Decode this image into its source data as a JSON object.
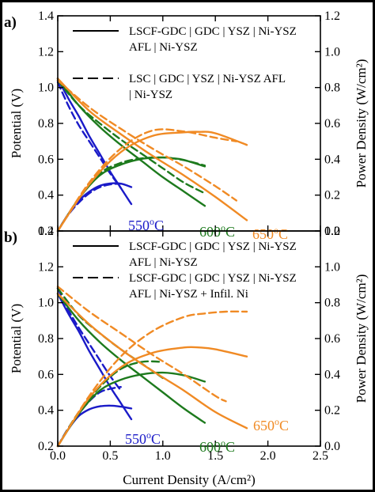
{
  "chart_data": [
    {
      "panel_label": "a)",
      "type": "line",
      "xlim": [
        0,
        2.5
      ],
      "ylim": [
        0.2,
        1.4
      ],
      "y2lim": [
        0,
        1.2
      ],
      "ylabel": "Potential (V)",
      "y2label": "Power Density (W/cm²)",
      "xticks": [
        "0.0",
        "0.5",
        "1.0",
        "1.5",
        "2.0",
        "2.5"
      ],
      "yticks": [
        "0.2",
        "0.4",
        "0.6",
        "0.8",
        "1.0",
        "1.2",
        "1.4"
      ],
      "y2ticks": [
        "0.0",
        "0.2",
        "0.4",
        "0.6",
        "0.8",
        "1.0",
        "1.2"
      ],
      "grid": false,
      "legend_position": "top",
      "legend": [
        {
          "style": "solid",
          "lines": [
            "LSCF-GDC | GDC | YSZ | Ni-YSZ",
            "AFL | Ni-YSZ"
          ]
        },
        {
          "style": "dashed",
          "lines": [
            "LSC | GDC | YSZ | Ni-YSZ AFL",
            "| Ni-YSZ"
          ]
        }
      ],
      "temperature_labels": [
        {
          "base": "550",
          "sup": "o",
          "unit": "C",
          "color": "#1a1ac8"
        },
        {
          "base": "600",
          "sup": "o",
          "unit": "C",
          "color": "#1d7a1d"
        },
        {
          "base": "650",
          "sup": "o",
          "unit": "C",
          "color": "#f08a24"
        }
      ],
      "series": [
        {
          "temp": "550",
          "style": "solid",
          "color": "#1a1ac8",
          "kind": "voltage",
          "x": [
            0,
            0.1,
            0.2,
            0.3,
            0.4,
            0.5,
            0.6,
            0.7
          ],
          "y": [
            1.05,
            0.94,
            0.84,
            0.73,
            0.63,
            0.53,
            0.44,
            0.35
          ]
        },
        {
          "temp": "550",
          "style": "solid",
          "color": "#1a1ac8",
          "kind": "power",
          "x": [
            0,
            0.1,
            0.2,
            0.3,
            0.4,
            0.5,
            0.6,
            0.7
          ],
          "y": [
            0,
            0.094,
            0.168,
            0.219,
            0.252,
            0.265,
            0.264,
            0.245
          ]
        },
        {
          "temp": "550",
          "style": "dashed",
          "color": "#1a1ac8",
          "kind": "voltage",
          "x": [
            0,
            0.1,
            0.2,
            0.3,
            0.4,
            0.5,
            0.6
          ],
          "y": [
            1.03,
            0.9,
            0.79,
            0.7,
            0.61,
            0.52,
            0.44
          ]
        },
        {
          "temp": "550",
          "style": "dashed",
          "color": "#1a1ac8",
          "kind": "power",
          "x": [
            0,
            0.1,
            0.2,
            0.3,
            0.4,
            0.5,
            0.6
          ],
          "y": [
            0,
            0.09,
            0.158,
            0.21,
            0.244,
            0.26,
            0.264
          ]
        },
        {
          "temp": "600",
          "style": "solid",
          "color": "#1d7a1d",
          "kind": "voltage",
          "x": [
            0,
            0.2,
            0.4,
            0.6,
            0.8,
            1.0,
            1.2,
            1.4
          ],
          "y": [
            1.05,
            0.9,
            0.78,
            0.68,
            0.59,
            0.5,
            0.42,
            0.34
          ]
        },
        {
          "temp": "600",
          "style": "solid",
          "color": "#1d7a1d",
          "kind": "power",
          "x": [
            0,
            0.2,
            0.4,
            0.6,
            0.8,
            1.0,
            1.1,
            1.2,
            1.4
          ],
          "y": [
            0,
            0.18,
            0.31,
            0.37,
            0.402,
            0.41,
            0.405,
            0.396,
            0.36
          ]
        },
        {
          "temp": "600",
          "style": "dashed",
          "color": "#1d7a1d",
          "kind": "voltage",
          "x": [
            0,
            0.2,
            0.4,
            0.6,
            0.8,
            1.0,
            1.2,
            1.4
          ],
          "y": [
            1.04,
            0.9,
            0.8,
            0.71,
            0.63,
            0.55,
            0.47,
            0.41
          ]
        },
        {
          "temp": "600",
          "style": "dashed",
          "color": "#1d7a1d",
          "kind": "power",
          "x": [
            0,
            0.2,
            0.4,
            0.6,
            0.8,
            1.0,
            1.2,
            1.4
          ],
          "y": [
            0,
            0.18,
            0.32,
            0.38,
            0.405,
            0.41,
            0.395,
            0.365
          ]
        },
        {
          "temp": "650",
          "style": "solid",
          "color": "#f08a24",
          "kind": "voltage",
          "x": [
            0,
            0.3,
            0.6,
            0.9,
            1.2,
            1.5,
            1.8
          ],
          "y": [
            1.05,
            0.87,
            0.74,
            0.62,
            0.51,
            0.39,
            0.26
          ]
        },
        {
          "temp": "650",
          "style": "solid",
          "color": "#f08a24",
          "kind": "power",
          "x": [
            0,
            0.3,
            0.6,
            0.9,
            1.2,
            1.35,
            1.5,
            1.8
          ],
          "y": [
            0,
            0.26,
            0.44,
            0.53,
            0.55,
            0.553,
            0.545,
            0.48
          ]
        },
        {
          "temp": "650",
          "style": "dashed",
          "color": "#f08a24",
          "kind": "voltage",
          "x": [
            0,
            0.3,
            0.6,
            0.9,
            1.2,
            1.5,
            1.7
          ],
          "y": [
            1.04,
            0.89,
            0.77,
            0.66,
            0.56,
            0.45,
            0.37
          ]
        },
        {
          "temp": "650",
          "style": "dashed",
          "color": "#f08a24",
          "kind": "power",
          "x": [
            0,
            0.3,
            0.6,
            0.9,
            1.2,
            1.5,
            1.7
          ],
          "y": [
            0,
            0.27,
            0.46,
            0.56,
            0.555,
            0.52,
            0.5
          ]
        }
      ]
    },
    {
      "panel_label": "b)",
      "type": "line",
      "xlim": [
        0,
        2.5
      ],
      "ylim": [
        0.2,
        1.4
      ],
      "y2lim": [
        0,
        1.2
      ],
      "xlabel": "Current Density (A/cm²)",
      "ylabel": "Potential (V)",
      "y2label": "Power Density (W/cm²)",
      "xticks": [
        "0.0",
        "0.5",
        "1.0",
        "1.5",
        "2.0",
        "2.5"
      ],
      "yticks": [
        "0.2",
        "0.4",
        "0.6",
        "0.8",
        "1.0",
        "1.2",
        "1.4"
      ],
      "y2ticks": [
        "0.0",
        "0.2",
        "0.4",
        "0.6",
        "0.8",
        "1.0",
        "1.2"
      ],
      "grid": false,
      "legend_position": "top",
      "legend": [
        {
          "style": "solid",
          "lines": [
            "LSCF-GDC | GDC | YSZ | Ni-YSZ",
            "AFL | Ni-YSZ"
          ]
        },
        {
          "style": "dashed",
          "lines": [
            "LSCF-GDC | GDC | YSZ | Ni-YSZ",
            "AFL | Ni-YSZ + Infil. Ni"
          ]
        }
      ],
      "temperature_labels": [
        {
          "base": "550",
          "sup": "o",
          "unit": "C",
          "color": "#1a1ac8"
        },
        {
          "base": "600",
          "sup": "o",
          "unit": "C",
          "color": "#1d7a1d"
        },
        {
          "base": "650",
          "sup": "o",
          "unit": "C",
          "color": "#f08a24"
        }
      ],
      "series": [
        {
          "temp": "550",
          "style": "solid",
          "color": "#1a1ac8",
          "kind": "voltage",
          "x": [
            0,
            0.1,
            0.2,
            0.3,
            0.4,
            0.5,
            0.6,
            0.7
          ],
          "y": [
            1.05,
            0.94,
            0.84,
            0.73,
            0.63,
            0.53,
            0.44,
            0.35
          ]
        },
        {
          "temp": "550",
          "style": "solid",
          "color": "#1a1ac8",
          "kind": "power",
          "x": [
            0,
            0.1,
            0.2,
            0.3,
            0.4,
            0.5,
            0.6,
            0.7
          ],
          "y": [
            0,
            0.094,
            0.168,
            0.205,
            0.222,
            0.226,
            0.22,
            0.21
          ]
        },
        {
          "temp": "550",
          "style": "dashed",
          "color": "#1a1ac8",
          "kind": "voltage",
          "x": [
            0,
            0.1,
            0.2,
            0.3,
            0.4,
            0.5,
            0.6
          ],
          "y": [
            1.08,
            0.96,
            0.86,
            0.77,
            0.68,
            0.59,
            0.51
          ]
        },
        {
          "temp": "550",
          "style": "dashed",
          "color": "#1a1ac8",
          "kind": "power",
          "x": [
            0,
            0.1,
            0.2,
            0.3,
            0.4,
            0.5,
            0.6
          ],
          "y": [
            0,
            0.1,
            0.18,
            0.25,
            0.3,
            0.32,
            0.33
          ]
        },
        {
          "temp": "600",
          "style": "solid",
          "color": "#1d7a1d",
          "kind": "voltage",
          "x": [
            0,
            0.2,
            0.4,
            0.6,
            0.8,
            1.0,
            1.2,
            1.4
          ],
          "y": [
            1.05,
            0.9,
            0.78,
            0.68,
            0.59,
            0.5,
            0.41,
            0.33
          ]
        },
        {
          "temp": "600",
          "style": "solid",
          "color": "#1d7a1d",
          "kind": "power",
          "x": [
            0,
            0.2,
            0.4,
            0.6,
            0.8,
            1.0,
            1.2,
            1.4
          ],
          "y": [
            0,
            0.18,
            0.31,
            0.37,
            0.4,
            0.41,
            0.395,
            0.36
          ]
        },
        {
          "temp": "600",
          "style": "dashed",
          "color": "#1d7a1d",
          "kind": "voltage",
          "x": [
            0,
            0.2,
            0.4,
            0.6,
            0.8,
            1.0
          ],
          "y": [
            1.08,
            0.93,
            0.83,
            0.74,
            0.66,
            0.58
          ]
        },
        {
          "temp": "600",
          "style": "dashed",
          "color": "#1d7a1d",
          "kind": "power",
          "x": [
            0,
            0.2,
            0.4,
            0.6,
            0.8,
            1.0
          ],
          "y": [
            0,
            0.19,
            0.33,
            0.43,
            0.47,
            0.47
          ]
        },
        {
          "temp": "650",
          "style": "solid",
          "color": "#f08a24",
          "kind": "voltage",
          "x": [
            0,
            0.3,
            0.6,
            0.9,
            1.2,
            1.5,
            1.8
          ],
          "y": [
            1.05,
            0.88,
            0.74,
            0.62,
            0.51,
            0.39,
            0.3
          ]
        },
        {
          "temp": "650",
          "style": "solid",
          "color": "#f08a24",
          "kind": "power",
          "x": [
            0,
            0.3,
            0.6,
            0.9,
            1.2,
            1.35,
            1.5,
            1.8
          ],
          "y": [
            0,
            0.27,
            0.44,
            0.52,
            0.55,
            0.55,
            0.54,
            0.5
          ]
        },
        {
          "temp": "650",
          "style": "dashed",
          "color": "#f08a24",
          "kind": "voltage",
          "x": [
            0,
            0.3,
            0.6,
            0.9,
            1.2,
            1.5,
            1.6
          ],
          "y": [
            1.09,
            0.95,
            0.83,
            0.71,
            0.6,
            0.48,
            0.45
          ]
        },
        {
          "temp": "650",
          "style": "dashed",
          "color": "#f08a24",
          "kind": "power",
          "x": [
            0,
            0.3,
            0.6,
            0.9,
            1.2,
            1.4,
            1.6,
            1.8
          ],
          "y": [
            0,
            0.28,
            0.5,
            0.64,
            0.72,
            0.74,
            0.75,
            0.75
          ]
        }
      ]
    }
  ]
}
